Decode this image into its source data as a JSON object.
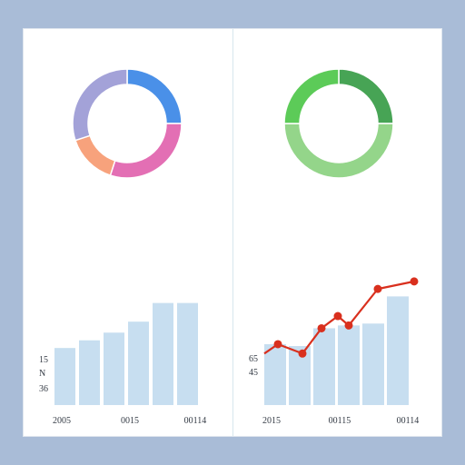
{
  "chart_data": [
    {
      "type": "pie",
      "slices": [
        {
          "value": 25,
          "color": "#4a90e8"
        },
        {
          "value": 30,
          "color": "#e36fb4"
        },
        {
          "value": 15,
          "color": "#f7a27c"
        },
        {
          "value": 30,
          "color": "#a3a2d8"
        }
      ]
    },
    {
      "type": "pie",
      "slices": [
        {
          "value": 25,
          "color": "#47a455"
        },
        {
          "value": 50,
          "color": "#94d58a"
        },
        {
          "value": 25,
          "color": "#5ccb58"
        }
      ]
    },
    {
      "type": "bar",
      "values": [
        52,
        59,
        66,
        76,
        93,
        93
      ],
      "ylim": [
        0,
        120
      ],
      "bar_color": "#c7def0",
      "ytick_labels": [
        "15",
        "N",
        "36"
      ],
      "xtick_labels": [
        "2005",
        "0015",
        "00114"
      ]
    },
    {
      "type": "bar+line",
      "bar_values": [
        65,
        63,
        82,
        85,
        87,
        116
      ],
      "line_values": [
        55,
        65,
        55,
        82,
        95,
        85,
        124,
        132
      ],
      "ylim": [
        0,
        160
      ],
      "bar_color": "#c7def0",
      "line_color": "#d9301e",
      "ytick_labels": [
        "65",
        "45"
      ],
      "xtick_labels": [
        "2015",
        "00115",
        "00114"
      ]
    }
  ]
}
